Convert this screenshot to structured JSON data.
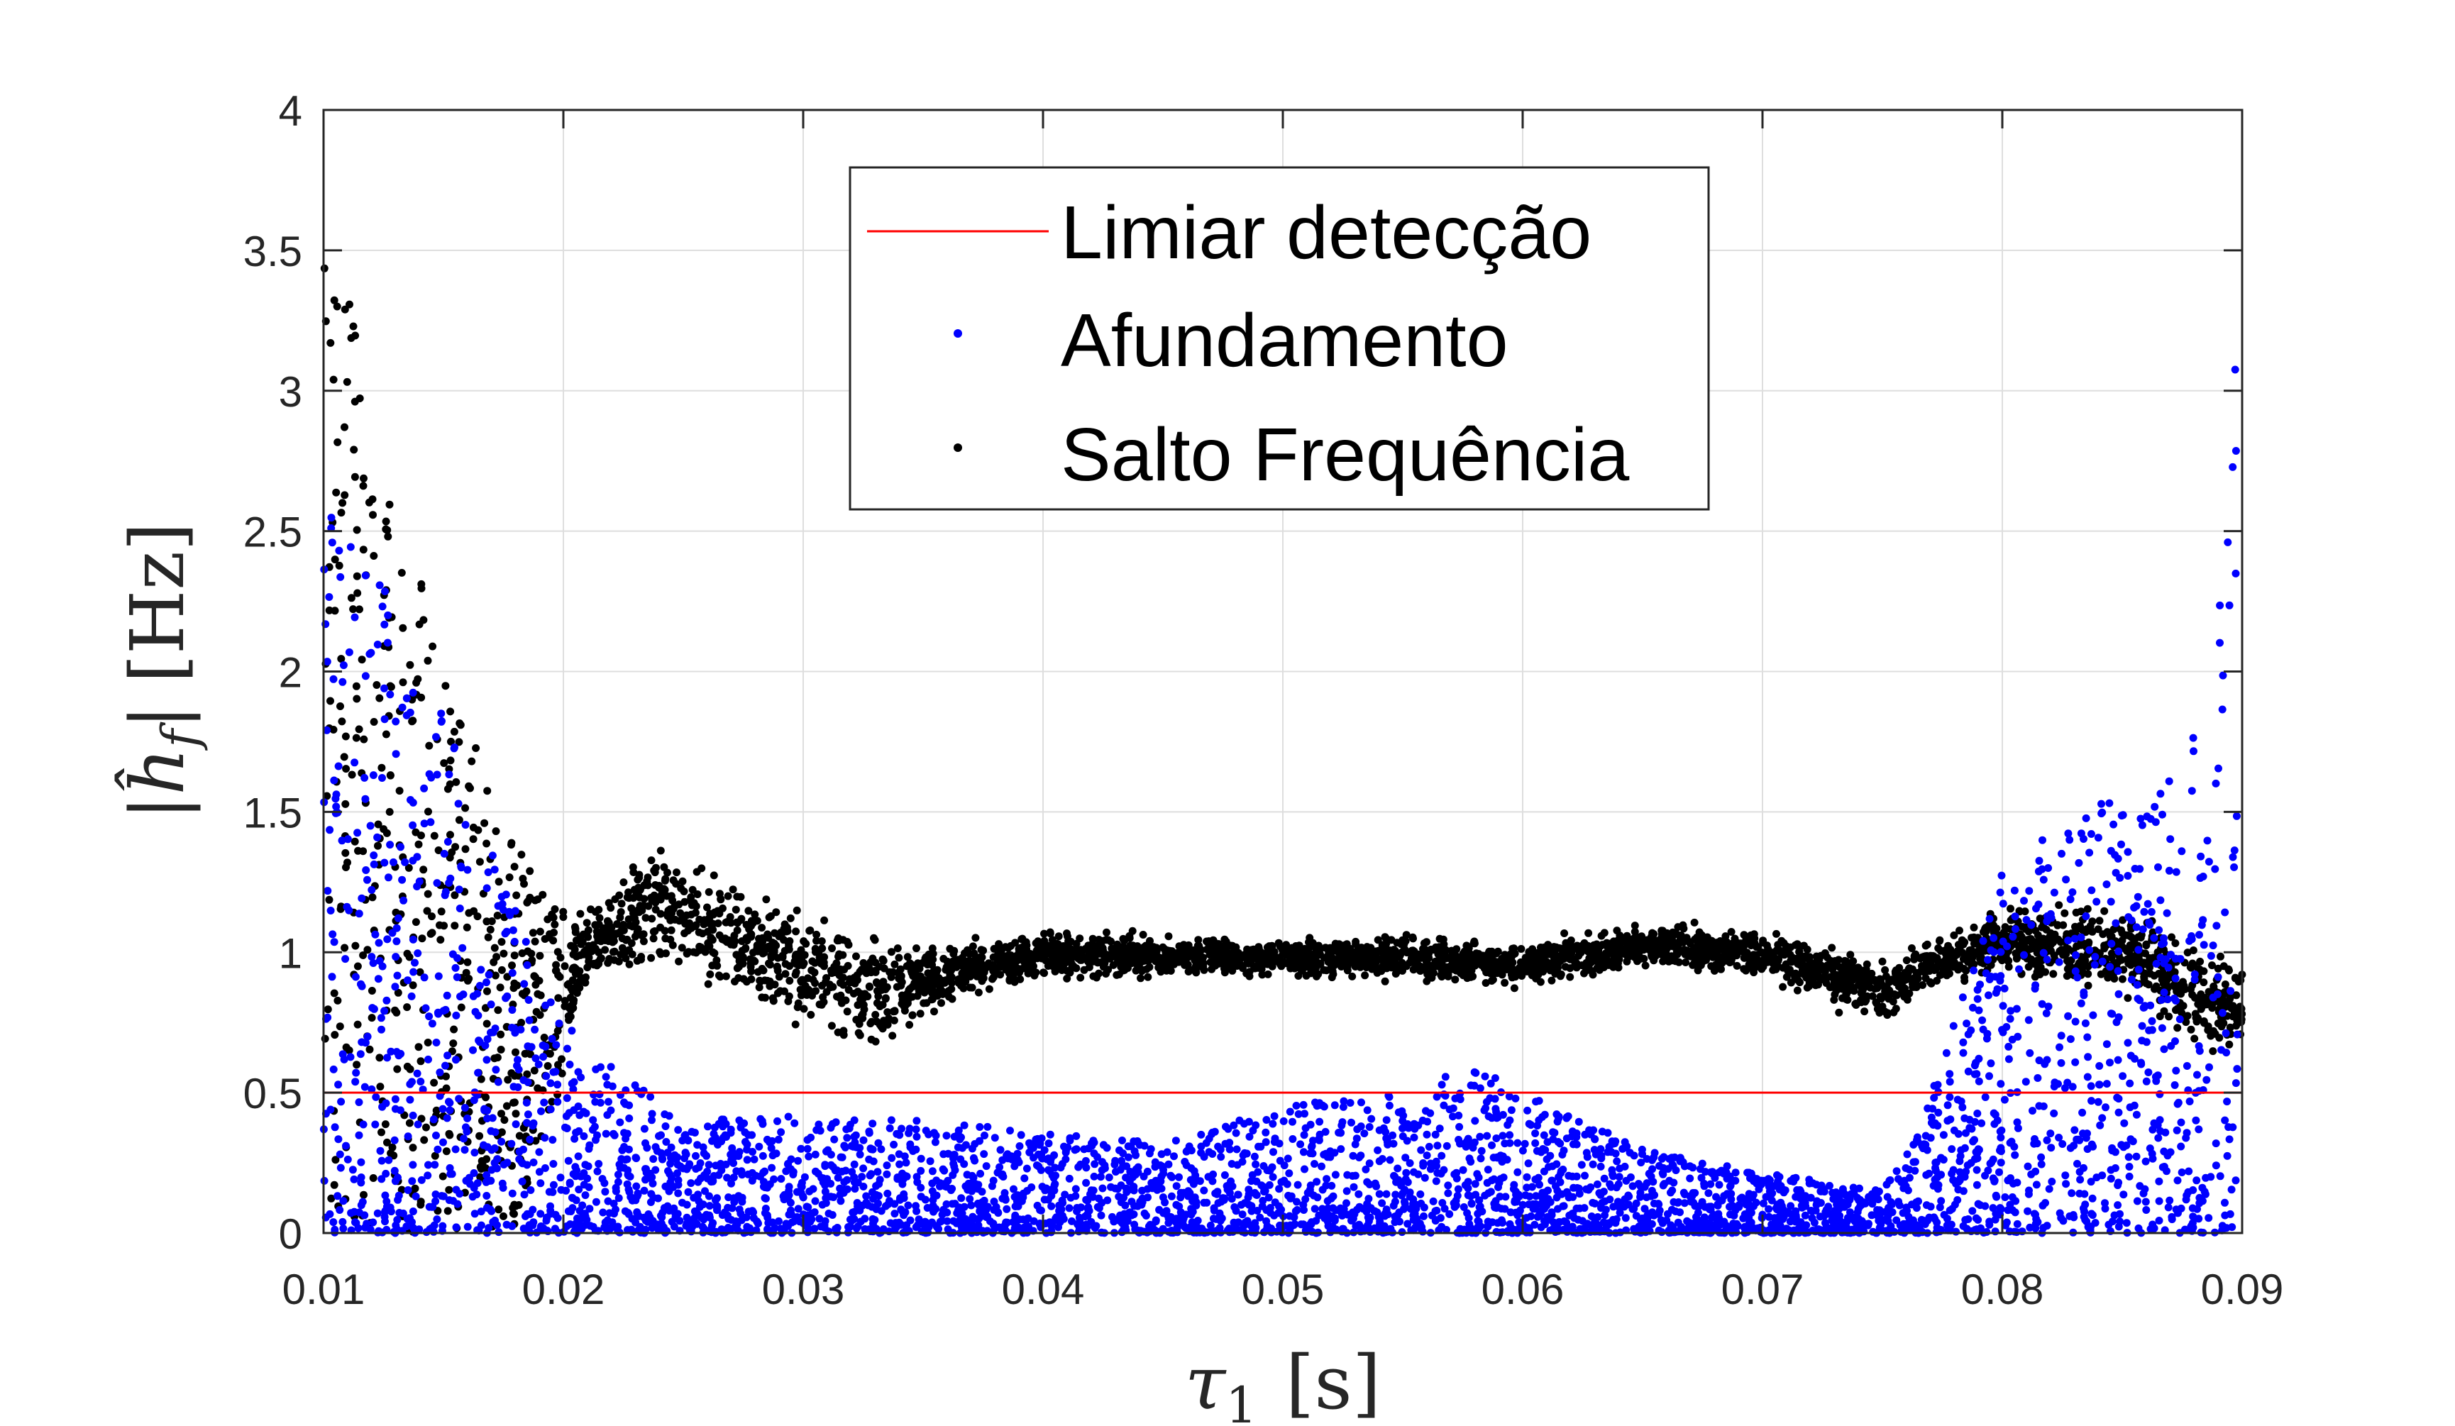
{
  "chart_data": {
    "type": "scatter",
    "xlabel": "τ1 [s]",
    "ylabel": "|ĥf| [Hz]",
    "xlim": [
      0.01,
      0.09
    ],
    "ylim": [
      0,
      4
    ],
    "xticks": [
      0.01,
      0.02,
      0.03,
      0.04,
      0.05,
      0.06,
      0.07,
      0.08,
      0.09
    ],
    "yticks": [
      0,
      0.5,
      1,
      1.5,
      2,
      2.5,
      3,
      3.5,
      4
    ],
    "grid": true,
    "legend_position": "top-center",
    "threshold": {
      "name": "Limiar detecção",
      "value": 0.5,
      "color": "#ff0000"
    },
    "series": [
      {
        "name": "Afundamento",
        "color": "#0000ff",
        "envelope": {
          "x": [
            0.01,
            0.012,
            0.014,
            0.016,
            0.018,
            0.019,
            0.02,
            0.022,
            0.025,
            0.03,
            0.035,
            0.04,
            0.045,
            0.05,
            0.055,
            0.058,
            0.06,
            0.065,
            0.07,
            0.075,
            0.0765,
            0.078,
            0.08,
            0.082,
            0.084,
            0.086,
            0.088,
            0.089,
            0.0898
          ],
          "y_max": [
            2.6,
            2.45,
            2.1,
            1.6,
            1.15,
            0.9,
            0.75,
            0.6,
            0.4,
            0.42,
            0.4,
            0.36,
            0.32,
            0.45,
            0.52,
            0.6,
            0.5,
            0.3,
            0.22,
            0.15,
            0.35,
            0.75,
            1.3,
            1.45,
            1.55,
            1.5,
            1.8,
            2.2,
            3.2
          ],
          "y_min": [
            0,
            0,
            0,
            0,
            0,
            0,
            0,
            0,
            0,
            0,
            0,
            0,
            0,
            0,
            0,
            0,
            0,
            0,
            0,
            0,
            0,
            0,
            0,
            0,
            0,
            0,
            0,
            0,
            0
          ]
        }
      },
      {
        "name": "Salto Frequência",
        "color": "#000000",
        "envelope": {
          "x": [
            0.01,
            0.011,
            0.012,
            0.014,
            0.016,
            0.018,
            0.0195,
            0.021,
            0.024,
            0.027,
            0.03,
            0.033,
            0.036,
            0.04,
            0.045,
            0.05,
            0.055,
            0.06,
            0.065,
            0.07,
            0.073,
            0.075,
            0.077,
            0.08,
            0.083,
            0.086,
            0.088,
            0.09
          ],
          "y_max": [
            3.5,
            3.4,
            2.8,
            2.35,
            1.85,
            1.4,
            1.15,
            1.2,
            1.45,
            1.3,
            1.2,
            1.1,
            1.05,
            1.1,
            1.08,
            1.06,
            1.08,
            1.05,
            1.12,
            1.1,
            1.05,
            1.0,
            1.05,
            1.2,
            1.2,
            1.18,
            1.1,
            1.05
          ],
          "y_min": [
            0,
            0,
            0,
            0,
            0,
            0,
            0.4,
            0.85,
            0.9,
            0.8,
            0.7,
            0.6,
            0.8,
            0.88,
            0.9,
            0.9,
            0.88,
            0.86,
            0.92,
            0.9,
            0.78,
            0.72,
            0.85,
            0.88,
            0.85,
            0.78,
            0.6,
            0.55
          ]
        }
      }
    ]
  }
}
